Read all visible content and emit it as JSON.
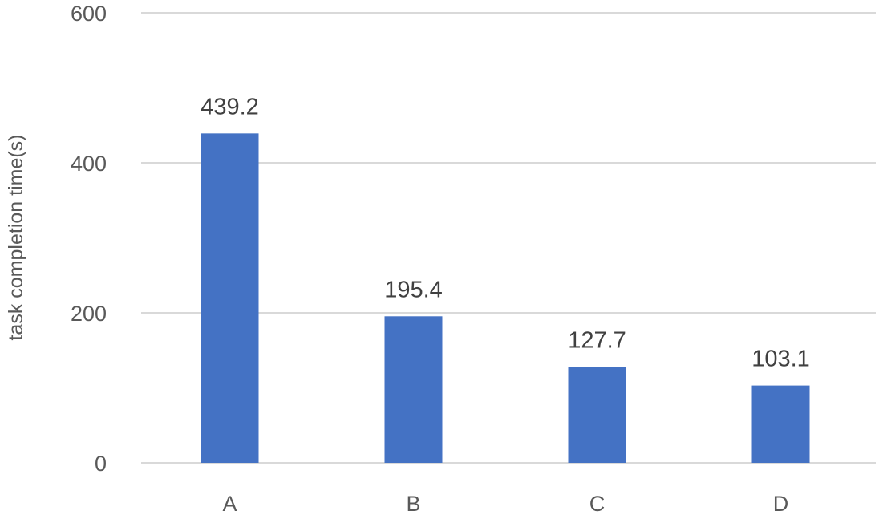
{
  "chart_data": {
    "type": "bar",
    "categories": [
      "A",
      "B",
      "C",
      "D"
    ],
    "values": [
      439.2,
      195.4,
      127.7,
      103.1
    ],
    "data_labels": [
      "439.2",
      "195.4",
      "127.7",
      "103.1"
    ],
    "ylabel": "task completion time(s)",
    "ylim": [
      0,
      600
    ],
    "yticks": [
      0,
      200,
      400,
      600
    ],
    "ytick_labels": [
      "0",
      "200",
      "400",
      "600"
    ],
    "grid": true,
    "legend": "none",
    "colors": {
      "bar": "#4472c4"
    }
  }
}
